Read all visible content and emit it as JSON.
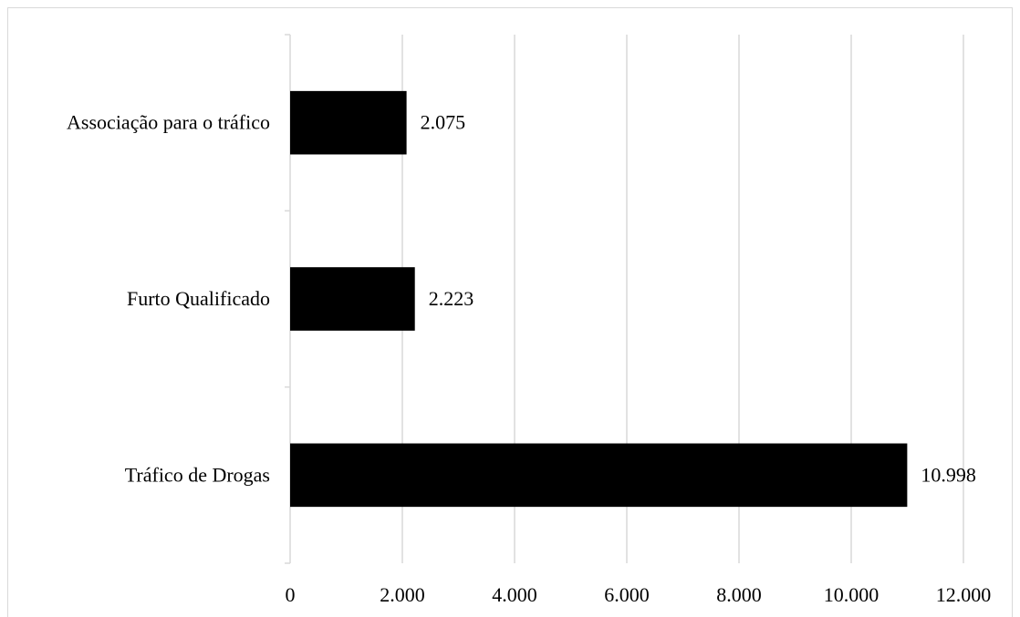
{
  "chart_data": {
    "type": "bar",
    "orientation": "horizontal",
    "categories": [
      "Associação para o tráfico",
      "Furto Qualificado",
      "Tráfico de Drogas"
    ],
    "values": [
      2075,
      2223,
      10998
    ],
    "data_labels": [
      "2.075",
      "2.223",
      "10.998"
    ],
    "xlim": [
      0,
      12000
    ],
    "xticks": [
      0,
      2000,
      4000,
      6000,
      8000,
      10000,
      12000
    ],
    "xtick_labels": [
      "0",
      "2.000",
      "4.000",
      "6.000",
      "8.000",
      "10.000",
      "12.000"
    ],
    "grid": "vertical",
    "legend": "none",
    "bar_color": "#000000",
    "grid_color": "#d9d9d9",
    "title": "",
    "xlabel": "",
    "ylabel": ""
  }
}
